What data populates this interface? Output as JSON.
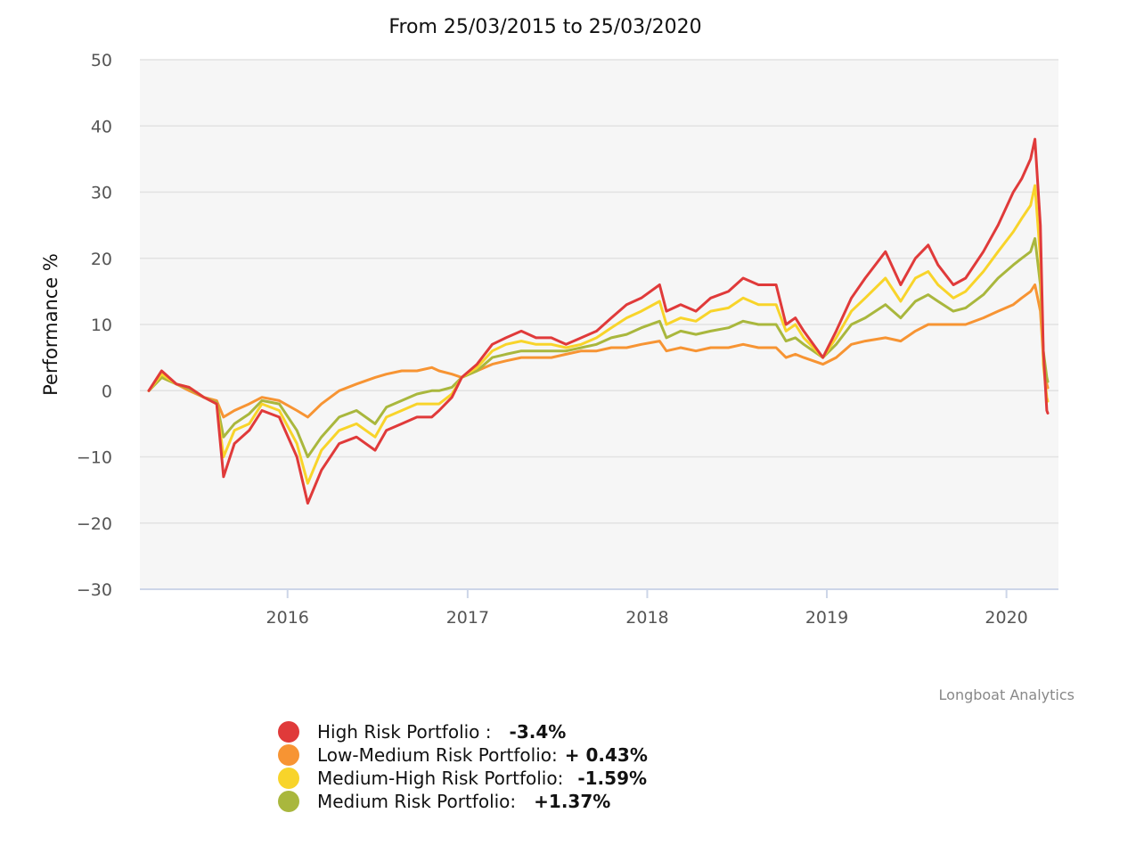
{
  "chart_data": {
    "type": "line",
    "title": "From 25/03/2015 to 25/03/2020",
    "xlabel": "",
    "ylabel": "Performance %",
    "ylim": [
      -30,
      50
    ],
    "y_ticks": [
      50,
      40,
      30,
      20,
      10,
      0,
      -10,
      -20,
      -30
    ],
    "y_tick_labels": [
      "50",
      "40",
      "30",
      "20",
      "10",
      "0",
      "−10",
      "−20",
      "−30"
    ],
    "x_range": [
      "2015-03-25",
      "2020-03-25"
    ],
    "x_ticks": [
      "2016-01-01",
      "2017-01-01",
      "2018-01-01",
      "2019-01-01",
      "2020-01-01"
    ],
    "x_tick_labels": [
      "2016",
      "2017",
      "2018",
      "2019",
      "2020"
    ],
    "grid": true,
    "credit": "Longboat Analytics",
    "series": [
      {
        "name": "High Risk Portfolio :",
        "summary": "-3.4%",
        "color": "#e03a3a",
        "x": [
          "2015-03-25",
          "2015-04-20",
          "2015-05-20",
          "2015-06-15",
          "2015-07-15",
          "2015-08-10",
          "2015-08-24",
          "2015-09-15",
          "2015-10-15",
          "2015-11-10",
          "2015-12-15",
          "2016-01-20",
          "2016-02-11",
          "2016-03-10",
          "2016-04-15",
          "2016-05-20",
          "2016-06-27",
          "2016-07-20",
          "2016-08-20",
          "2016-09-20",
          "2016-10-20",
          "2016-11-04",
          "2016-11-30",
          "2016-12-20",
          "2017-01-20",
          "2017-02-20",
          "2017-03-20",
          "2017-04-20",
          "2017-05-20",
          "2017-06-20",
          "2017-07-20",
          "2017-08-20",
          "2017-09-20",
          "2017-10-20",
          "2017-11-20",
          "2017-12-20",
          "2018-01-26",
          "2018-02-09",
          "2018-03-10",
          "2018-04-10",
          "2018-05-10",
          "2018-06-15",
          "2018-07-15",
          "2018-08-15",
          "2018-09-20",
          "2018-10-10",
          "2018-10-29",
          "2018-11-15",
          "2018-12-24",
          "2019-01-20",
          "2019-02-20",
          "2019-03-20",
          "2019-04-30",
          "2019-05-31",
          "2019-06-30",
          "2019-07-26",
          "2019-08-15",
          "2019-09-15",
          "2019-10-10",
          "2019-11-15",
          "2019-12-15",
          "2020-01-15",
          "2020-02-01",
          "2020-02-19",
          "2020-02-28",
          "2020-03-10",
          "2020-03-16",
          "2020-03-23",
          "2020-03-25"
        ],
        "values": [
          0,
          3,
          1,
          0.5,
          -1,
          -2,
          -13,
          -8,
          -6,
          -3,
          -4,
          -10,
          -17,
          -12,
          -8,
          -7,
          -9,
          -6,
          -5,
          -4,
          -4,
          -3,
          -1,
          2,
          4,
          7,
          8,
          9,
          8,
          8,
          7,
          8,
          9,
          11,
          13,
          14,
          16,
          12,
          13,
          12,
          14,
          15,
          17,
          16,
          16,
          10,
          11,
          9,
          5,
          9,
          14,
          17,
          21,
          16,
          20,
          22,
          19,
          16,
          17,
          21,
          25,
          30,
          32,
          35,
          38,
          25,
          6,
          -3,
          -3.4
        ]
      },
      {
        "name": "Low-Medium Risk Portfolio:",
        "summary": "+ 0.43%",
        "color": "#f79433",
        "x": [
          "2015-03-25",
          "2015-04-20",
          "2015-05-20",
          "2015-06-15",
          "2015-07-15",
          "2015-08-10",
          "2015-08-24",
          "2015-09-15",
          "2015-10-15",
          "2015-11-10",
          "2015-12-15",
          "2016-01-20",
          "2016-02-11",
          "2016-03-10",
          "2016-04-15",
          "2016-05-20",
          "2016-06-27",
          "2016-07-20",
          "2016-08-20",
          "2016-09-20",
          "2016-10-20",
          "2016-11-04",
          "2016-11-30",
          "2016-12-20",
          "2017-01-20",
          "2017-02-20",
          "2017-03-20",
          "2017-04-20",
          "2017-05-20",
          "2017-06-20",
          "2017-07-20",
          "2017-08-20",
          "2017-09-20",
          "2017-10-20",
          "2017-11-20",
          "2017-12-20",
          "2018-01-26",
          "2018-02-09",
          "2018-03-10",
          "2018-04-10",
          "2018-05-10",
          "2018-06-15",
          "2018-07-15",
          "2018-08-15",
          "2018-09-20",
          "2018-10-10",
          "2018-10-29",
          "2018-11-15",
          "2018-12-24",
          "2019-01-20",
          "2019-02-20",
          "2019-03-20",
          "2019-04-30",
          "2019-05-31",
          "2019-06-30",
          "2019-07-26",
          "2019-08-15",
          "2019-09-15",
          "2019-10-10",
          "2019-11-15",
          "2019-12-15",
          "2020-01-15",
          "2020-02-01",
          "2020-02-19",
          "2020-02-28",
          "2020-03-10",
          "2020-03-16",
          "2020-03-23",
          "2020-03-25"
        ],
        "values": [
          0,
          2,
          1,
          0,
          -1,
          -1.5,
          -4,
          -3,
          -2,
          -1,
          -1.5,
          -3,
          -4,
          -2,
          0,
          1,
          2,
          2.5,
          3,
          3,
          3.5,
          3,
          2.5,
          2,
          3,
          4,
          4.5,
          5,
          5,
          5,
          5.5,
          6,
          6,
          6.5,
          6.5,
          7,
          7.5,
          6,
          6.5,
          6,
          6.5,
          6.5,
          7,
          6.5,
          6.5,
          5,
          5.5,
          5,
          4,
          5,
          7,
          7.5,
          8,
          7.5,
          9,
          10,
          10,
          10,
          10,
          11,
          12,
          13,
          14,
          15,
          16,
          12,
          5,
          1,
          0.43
        ]
      },
      {
        "name": "Medium-High Risk Portfolio:",
        "summary": "-1.59%",
        "color": "#f8d42a",
        "x": [
          "2015-03-25",
          "2015-04-20",
          "2015-05-20",
          "2015-06-15",
          "2015-07-15",
          "2015-08-10",
          "2015-08-24",
          "2015-09-15",
          "2015-10-15",
          "2015-11-10",
          "2015-12-15",
          "2016-01-20",
          "2016-02-11",
          "2016-03-10",
          "2016-04-15",
          "2016-05-20",
          "2016-06-27",
          "2016-07-20",
          "2016-08-20",
          "2016-09-20",
          "2016-10-20",
          "2016-11-04",
          "2016-11-30",
          "2016-12-20",
          "2017-01-20",
          "2017-02-20",
          "2017-03-20",
          "2017-04-20",
          "2017-05-20",
          "2017-06-20",
          "2017-07-20",
          "2017-08-20",
          "2017-09-20",
          "2017-10-20",
          "2017-11-20",
          "2017-12-20",
          "2018-01-26",
          "2018-02-09",
          "2018-03-10",
          "2018-04-10",
          "2018-05-10",
          "2018-06-15",
          "2018-07-15",
          "2018-08-15",
          "2018-09-20",
          "2018-10-10",
          "2018-10-29",
          "2018-11-15",
          "2018-12-24",
          "2019-01-20",
          "2019-02-20",
          "2019-03-20",
          "2019-04-30",
          "2019-05-31",
          "2019-06-30",
          "2019-07-26",
          "2019-08-15",
          "2019-09-15",
          "2019-10-10",
          "2019-11-15",
          "2019-12-15",
          "2020-01-15",
          "2020-02-01",
          "2020-02-19",
          "2020-02-28",
          "2020-03-10",
          "2020-03-16",
          "2020-03-23",
          "2020-03-25"
        ],
        "values": [
          0,
          2.5,
          1,
          0.5,
          -1,
          -2,
          -10,
          -6,
          -5,
          -2,
          -3,
          -8,
          -14,
          -9,
          -6,
          -5,
          -7,
          -4,
          -3,
          -2,
          -2,
          -2,
          -0.5,
          2,
          3.5,
          6,
          7,
          7.5,
          7,
          7,
          6.5,
          7,
          8,
          9.5,
          11,
          12,
          13.5,
          10,
          11,
          10.5,
          12,
          12.5,
          14,
          13,
          13,
          9,
          10,
          8,
          5,
          8,
          12,
          14,
          17,
          13.5,
          17,
          18,
          16,
          14,
          15,
          18,
          21,
          24,
          26,
          28,
          31,
          20,
          4,
          -1,
          -1.59
        ]
      },
      {
        "name": "Medium Risk Portfolio:",
        "summary": "+1.37%",
        "color": "#a9b73d",
        "x": [
          "2015-03-25",
          "2015-04-20",
          "2015-05-20",
          "2015-06-15",
          "2015-07-15",
          "2015-08-10",
          "2015-08-24",
          "2015-09-15",
          "2015-10-15",
          "2015-11-10",
          "2015-12-15",
          "2016-01-20",
          "2016-02-11",
          "2016-03-10",
          "2016-04-15",
          "2016-05-20",
          "2016-06-27",
          "2016-07-20",
          "2016-08-20",
          "2016-09-20",
          "2016-10-20",
          "2016-11-04",
          "2016-11-30",
          "2016-12-20",
          "2017-01-20",
          "2017-02-20",
          "2017-03-20",
          "2017-04-20",
          "2017-05-20",
          "2017-06-20",
          "2017-07-20",
          "2017-08-20",
          "2017-09-20",
          "2017-10-20",
          "2017-11-20",
          "2017-12-20",
          "2018-01-26",
          "2018-02-09",
          "2018-03-10",
          "2018-04-10",
          "2018-05-10",
          "2018-06-15",
          "2018-07-15",
          "2018-08-15",
          "2018-09-20",
          "2018-10-10",
          "2018-10-29",
          "2018-11-15",
          "2018-12-24",
          "2019-01-20",
          "2019-02-20",
          "2019-03-20",
          "2019-04-30",
          "2019-05-31",
          "2019-06-30",
          "2019-07-26",
          "2019-08-15",
          "2019-09-15",
          "2019-10-10",
          "2019-11-15",
          "2019-12-15",
          "2020-01-15",
          "2020-02-01",
          "2020-02-19",
          "2020-02-28",
          "2020-03-10",
          "2020-03-16",
          "2020-03-23",
          "2020-03-25"
        ],
        "values": [
          0,
          2,
          1,
          0.3,
          -1,
          -1.8,
          -7,
          -5,
          -3.5,
          -1.5,
          -2,
          -6,
          -10,
          -7,
          -4,
          -3,
          -5,
          -2.5,
          -1.5,
          -0.5,
          0,
          0,
          0.5,
          2,
          3,
          5,
          5.5,
          6,
          6,
          6,
          6,
          6.5,
          7,
          8,
          8.5,
          9.5,
          10.5,
          8,
          9,
          8.5,
          9,
          9.5,
          10.5,
          10,
          10,
          7.5,
          8,
          7,
          5,
          7,
          10,
          11,
          13,
          11,
          13.5,
          14.5,
          13.5,
          12,
          12.5,
          14.5,
          17,
          19,
          20,
          21,
          23,
          16,
          6,
          2,
          1.37
        ]
      }
    ]
  }
}
